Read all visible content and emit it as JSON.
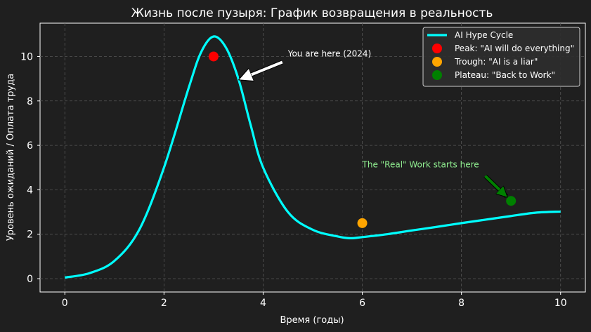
{
  "chart_data": {
    "type": "line",
    "title": "Жизнь после пузыря: График возвращения в реальность",
    "xlabel": "Время (годы)",
    "ylabel": "Уровень ожиданий / Оплата труда",
    "xlim": [
      -0.5,
      10.5
    ],
    "ylim": [
      -0.6,
      11.5
    ],
    "xticks": [
      0,
      2,
      4,
      6,
      8,
      10
    ],
    "yticks": [
      0,
      2,
      4,
      6,
      8,
      10
    ],
    "grid": true,
    "legend_position": "top-right",
    "series": [
      {
        "name": "AI Hype Cycle",
        "color": "#00ffff",
        "x": [
          0,
          0.5,
          1,
          1.5,
          2,
          2.5,
          2.75,
          3,
          3.25,
          3.5,
          3.75,
          4,
          4.5,
          5,
          5.5,
          5.75,
          6,
          6.5,
          7,
          7.5,
          8,
          8.5,
          9,
          9.5,
          10
        ],
        "y": [
          0.05,
          0.25,
          0.8,
          2.2,
          5.0,
          8.6,
          10.2,
          10.9,
          10.4,
          9.0,
          6.9,
          5.0,
          3.0,
          2.2,
          1.9,
          1.82,
          1.87,
          2.0,
          2.17,
          2.33,
          2.5,
          2.66,
          2.82,
          2.97,
          3.02
        ]
      }
    ],
    "markers": [
      {
        "name": "Peak: \"AI will do everything\"",
        "x": 3,
        "y": 10,
        "color": "#ff0000"
      },
      {
        "name": "Trough: \"AI is a liar\"",
        "x": 6,
        "y": 2.5,
        "color": "#ffa500"
      },
      {
        "name": "Plateau: \"Back to Work\"",
        "x": 9,
        "y": 3.5,
        "color": "#008000"
      }
    ],
    "annotations": [
      {
        "text": "You are here (2024)",
        "x": 3.5,
        "y": 9,
        "text_x": 4.5,
        "text_y": 10,
        "color": "#ffffff"
      },
      {
        "text": "The \"Real\" Work starts here",
        "x": 9,
        "y": 3.5,
        "text_x": 6,
        "text_y": 5,
        "color": "#90ee90"
      }
    ]
  }
}
